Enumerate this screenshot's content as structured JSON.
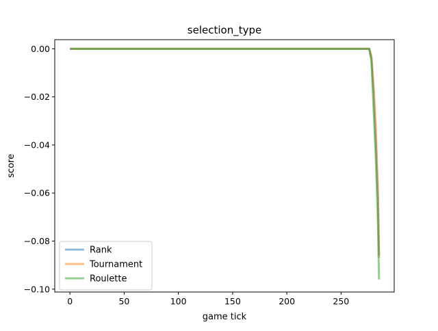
{
  "chart_data": {
    "type": "line",
    "title": "selection_type",
    "xlabel": "game tick",
    "ylabel": "score",
    "xlim": [
      -14,
      299
    ],
    "ylim": [
      -0.1012,
      0.0038
    ],
    "xticks": [
      0,
      50,
      100,
      150,
      200,
      250
    ],
    "xtick_labels": [
      "0",
      "50",
      "100",
      "150",
      "200",
      "250"
    ],
    "yticks": [
      0.0,
      -0.02,
      -0.04,
      -0.06,
      -0.08,
      -0.1
    ],
    "ytick_labels": [
      "0.00",
      "−0.02",
      "−0.04",
      "−0.06",
      "−0.08",
      "−0.10"
    ],
    "grid": false,
    "legend_position": "lower-left",
    "series": [
      {
        "name": "Rank",
        "color": "#1f77b4",
        "x": [
          0,
          50,
          100,
          150,
          200,
          250,
          276,
          278,
          280,
          282,
          284,
          285
        ],
        "y": [
          0,
          0,
          0,
          0,
          0,
          0,
          0,
          -0.004,
          -0.018,
          -0.038,
          -0.062,
          -0.086
        ]
      },
      {
        "name": "Tournament",
        "color": "#ff7f0e",
        "x": [
          0,
          50,
          100,
          150,
          200,
          250,
          276,
          278,
          280,
          282,
          284,
          285
        ],
        "y": [
          0,
          0,
          0,
          0,
          0,
          0,
          0,
          -0.003,
          -0.015,
          -0.032,
          -0.058,
          -0.087
        ]
      },
      {
        "name": "Roulette",
        "color": "#2ca02c",
        "x": [
          0,
          50,
          100,
          150,
          200,
          250,
          276,
          278,
          280,
          282,
          284,
          285
        ],
        "y": [
          0,
          0,
          0,
          0,
          0,
          0,
          0,
          -0.005,
          -0.025,
          -0.045,
          -0.072,
          -0.096
        ]
      }
    ]
  }
}
